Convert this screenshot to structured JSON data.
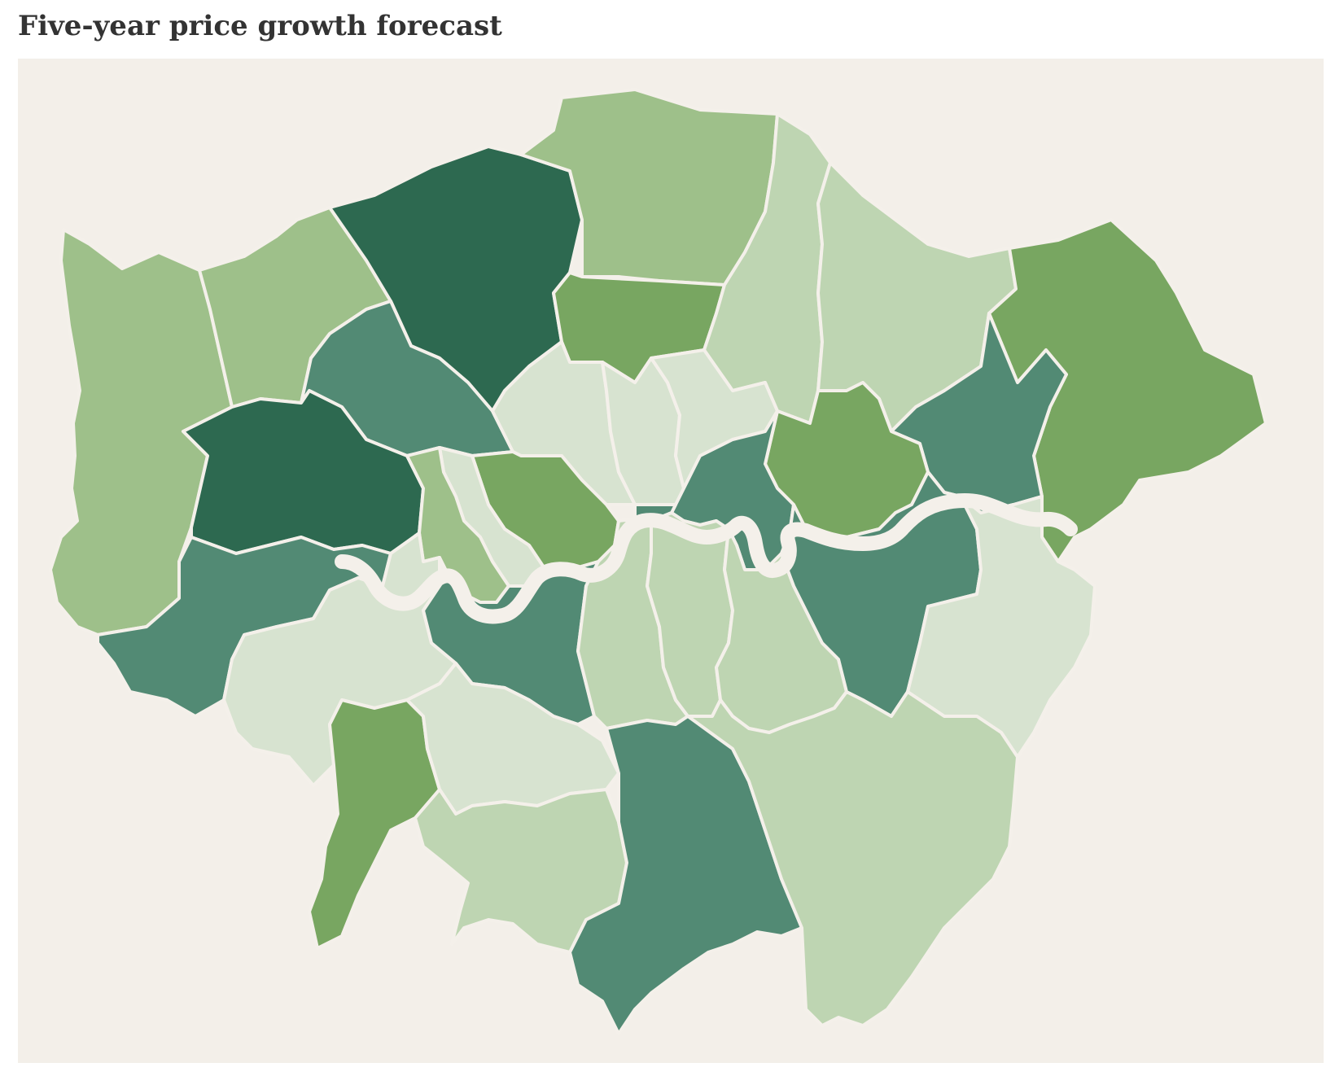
{
  "title": "Five-year price growth forecast",
  "colors": {
    "background": "#f3efe9",
    "boundary": "#f4f0ea",
    "river": "#f4f0ea",
    "scale": [
      "#d7e3d0",
      "#bed5b2",
      "#9ec08a",
      "#78a661",
      "#528a74",
      "#2d6950"
    ]
  },
  "boroughs": [
    {
      "id": "hillingdon",
      "shade": 2
    },
    {
      "id": "harrow",
      "shade": 2
    },
    {
      "id": "barnet",
      "shade": 5
    },
    {
      "id": "enfield",
      "shade": 2
    },
    {
      "id": "haringey",
      "shade": 3
    },
    {
      "id": "waltham-forest",
      "shade": 1
    },
    {
      "id": "redbridge",
      "shade": 1
    },
    {
      "id": "havering",
      "shade": 3
    },
    {
      "id": "barking-dagenham",
      "shade": 4
    },
    {
      "id": "newham",
      "shade": 3
    },
    {
      "id": "brent",
      "shade": 4
    },
    {
      "id": "ealing",
      "shade": 5
    },
    {
      "id": "camden",
      "shade": 0
    },
    {
      "id": "islington",
      "shade": 0
    },
    {
      "id": "hackney",
      "shade": 0
    },
    {
      "id": "tower-hamlets",
      "shade": 4
    },
    {
      "id": "city-of-london",
      "shade": 4
    },
    {
      "id": "westminster",
      "shade": 3
    },
    {
      "id": "kensington-chelsea",
      "shade": 0
    },
    {
      "id": "hammersmith-fulham",
      "shade": 2
    },
    {
      "id": "hounslow",
      "shade": 4
    },
    {
      "id": "richmond",
      "shade": 0
    },
    {
      "id": "kingston",
      "shade": 3
    },
    {
      "id": "wandsworth",
      "shade": 4
    },
    {
      "id": "merton",
      "shade": 0
    },
    {
      "id": "sutton",
      "shade": 1
    },
    {
      "id": "lambeth",
      "shade": 1
    },
    {
      "id": "southwark",
      "shade": 1
    },
    {
      "id": "croydon",
      "shade": 4
    },
    {
      "id": "lewisham",
      "shade": 1
    },
    {
      "id": "greenwich",
      "shade": 4
    },
    {
      "id": "bexley",
      "shade": 0
    },
    {
      "id": "bromley",
      "shade": 1
    }
  ]
}
